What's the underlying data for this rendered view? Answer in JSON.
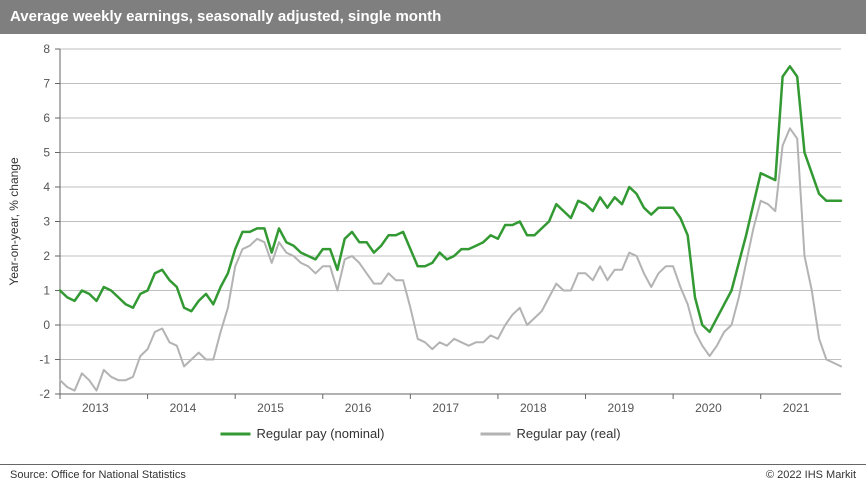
{
  "chart": {
    "type": "line",
    "title": "Average weekly earnings, seasonally adjusted, single month",
    "title_bg": "#7f7f7f",
    "title_color": "#ffffff",
    "title_fontsize": 15,
    "background_color": "#ffffff",
    "plot_bg": "#ffffff",
    "ylabel": "Year-on-year, % change",
    "ylabel_fontsize": 12,
    "ylim": [
      -2,
      8
    ],
    "ytick_step": 1,
    "yticks": [
      -2,
      -1,
      0,
      1,
      2,
      3,
      4,
      5,
      6,
      7,
      8
    ],
    "x_tick_labels": [
      "2013",
      "2014",
      "2015",
      "2016",
      "2017",
      "2018",
      "2019",
      "2020",
      "2021"
    ],
    "x_tick_positions": [
      0,
      12,
      24,
      36,
      48,
      60,
      72,
      84,
      96
    ],
    "x_count": 108,
    "grid_color": "#bfbfbf",
    "axis_color": "#666666",
    "tick_fontsize": 12,
    "tick_color": "#555555",
    "series": [
      {
        "name": "Regular pay (nominal)",
        "color": "#339933",
        "line_width": 2.5,
        "values": [
          1.0,
          0.8,
          0.7,
          1.0,
          0.9,
          0.7,
          1.1,
          1.0,
          0.8,
          0.6,
          0.5,
          0.9,
          1.0,
          1.5,
          1.6,
          1.3,
          1.1,
          0.5,
          0.4,
          0.7,
          0.9,
          0.6,
          1.1,
          1.5,
          2.2,
          2.7,
          2.7,
          2.8,
          2.8,
          2.1,
          2.8,
          2.4,
          2.3,
          2.1,
          2.0,
          1.9,
          2.2,
          2.2,
          1.6,
          2.5,
          2.7,
          2.4,
          2.4,
          2.1,
          2.3,
          2.6,
          2.6,
          2.7,
          2.2,
          1.7,
          1.7,
          1.8,
          2.1,
          1.9,
          2.0,
          2.2,
          2.2,
          2.3,
          2.4,
          2.6,
          2.5,
          2.9,
          2.9,
          3.0,
          2.6,
          2.6,
          2.8,
          3.0,
          3.5,
          3.3,
          3.1,
          3.6,
          3.5,
          3.3,
          3.7,
          3.4,
          3.7,
          3.5,
          4.0,
          3.8,
          3.4,
          3.2,
          3.4,
          3.4,
          3.4,
          3.1,
          2.6,
          0.8,
          0.0,
          -0.2,
          0.2,
          0.6,
          1.0,
          1.8,
          2.6,
          3.5,
          4.4,
          4.3,
          4.2,
          7.2,
          7.5,
          7.2,
          5.0,
          4.4,
          3.8,
          3.6,
          3.6,
          3.6
        ]
      },
      {
        "name": "Regular pay (real)",
        "color": "#b3b3b3",
        "line_width": 2,
        "values": [
          -1.6,
          -1.8,
          -1.9,
          -1.4,
          -1.6,
          -1.9,
          -1.3,
          -1.5,
          -1.6,
          -1.6,
          -1.5,
          -0.9,
          -0.7,
          -0.2,
          -0.1,
          -0.5,
          -0.6,
          -1.2,
          -1.0,
          -0.8,
          -1.0,
          -1.0,
          -0.2,
          0.5,
          1.7,
          2.2,
          2.3,
          2.5,
          2.4,
          1.8,
          2.4,
          2.1,
          2.0,
          1.8,
          1.7,
          1.5,
          1.7,
          1.7,
          1.0,
          1.9,
          2.0,
          1.8,
          1.5,
          1.2,
          1.2,
          1.5,
          1.3,
          1.3,
          0.5,
          -0.4,
          -0.5,
          -0.7,
          -0.5,
          -0.6,
          -0.4,
          -0.5,
          -0.6,
          -0.5,
          -0.5,
          -0.3,
          -0.4,
          0.0,
          0.3,
          0.5,
          0.0,
          0.2,
          0.4,
          0.8,
          1.2,
          1.0,
          1.0,
          1.5,
          1.5,
          1.3,
          1.7,
          1.3,
          1.6,
          1.6,
          2.1,
          2.0,
          1.5,
          1.1,
          1.5,
          1.7,
          1.7,
          1.1,
          0.6,
          -0.2,
          -0.6,
          -0.9,
          -0.6,
          -0.2,
          0.0,
          0.8,
          1.8,
          2.8,
          3.6,
          3.5,
          3.3,
          5.2,
          5.7,
          5.4,
          2.0,
          1.0,
          -0.4,
          -1.0,
          -1.1,
          -1.2
        ]
      }
    ],
    "legend": {
      "position": "bottom-center",
      "fontsize": 13,
      "items": [
        {
          "label": "Regular pay (nominal)",
          "color": "#339933",
          "line_width": 3
        },
        {
          "label": "Regular pay (real)",
          "color": "#b3b3b3",
          "line_width": 3
        }
      ]
    },
    "footer_left": "Source: Office for National Statistics",
    "footer_right": "© 2022 IHS Markit"
  }
}
